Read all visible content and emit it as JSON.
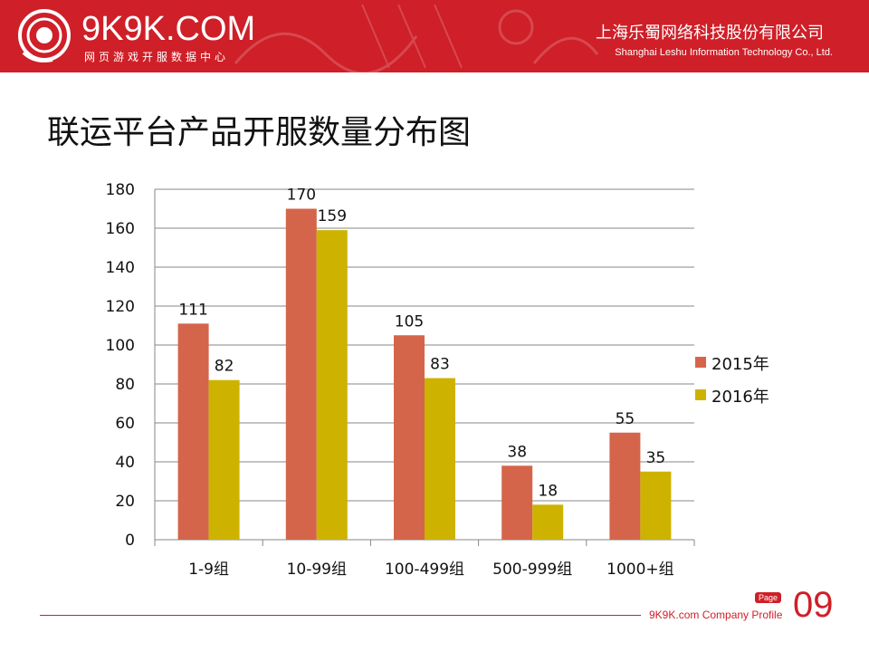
{
  "header": {
    "brand": "9K9K.COM",
    "brand_sub": "网页游戏开服数据中心",
    "company_cn": "上海乐蜀网络科技股份有限公司",
    "company_en": "Shanghai Leshu Information Technology Co., Ltd."
  },
  "page_title": "联运平台产品开服数量分布图",
  "chart_data": {
    "type": "bar",
    "title": "联运平台产品开服数量分布图",
    "categories": [
      "1-9组",
      "10-99组",
      "100-499组",
      "500-999组",
      "1000+组"
    ],
    "series": [
      {
        "name": "2015年",
        "color": "#d4654a",
        "values": [
          111,
          170,
          105,
          38,
          55
        ]
      },
      {
        "name": "2016年",
        "color": "#cdb300",
        "values": [
          82,
          159,
          83,
          18,
          35
        ]
      }
    ],
    "ylim": [
      0,
      180
    ],
    "yticks": [
      0,
      20,
      40,
      60,
      80,
      100,
      120,
      140,
      160,
      180
    ],
    "grid": true,
    "legend": "right",
    "xlabel": "",
    "ylabel": ""
  },
  "footer": {
    "text": "9K9K.com Company Profile",
    "page_label": "Page",
    "page_number": "09"
  }
}
